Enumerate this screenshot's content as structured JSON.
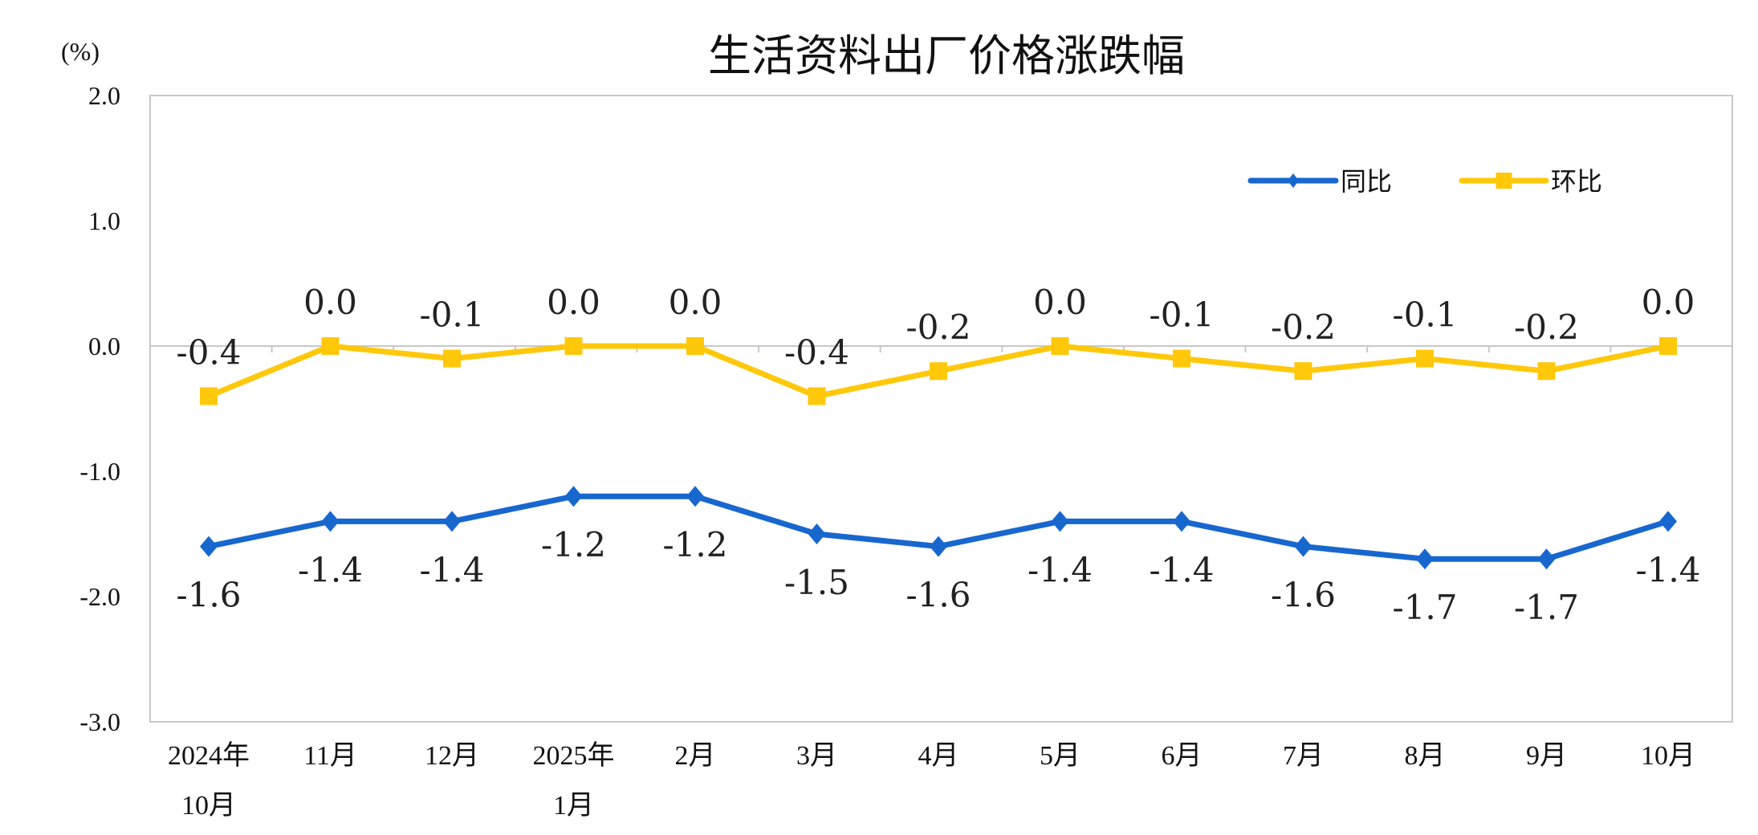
{
  "chart_data": {
    "type": "line",
    "title": "生活资料出厂价格涨跌幅",
    "ylabel": "(%)",
    "xlabel": "",
    "ylim": [
      -3.0,
      2.0
    ],
    "yticks": [
      "2.0",
      "1.0",
      "0.0",
      "-1.0",
      "-2.0",
      "-3.0"
    ],
    "ytick_values": [
      2.0,
      1.0,
      0.0,
      -1.0,
      -2.0,
      -3.0
    ],
    "categories": [
      [
        "2024年",
        "10月"
      ],
      [
        "11月"
      ],
      [
        "12月"
      ],
      [
        "2025年",
        "1月"
      ],
      [
        "2月"
      ],
      [
        "3月"
      ],
      [
        "4月"
      ],
      [
        "5月"
      ],
      [
        "6月"
      ],
      [
        "7月"
      ],
      [
        "8月"
      ],
      [
        "9月"
      ],
      [
        "10月"
      ]
    ],
    "series": [
      {
        "name": "同比",
        "color": "#1767CF",
        "marker": "diamond",
        "values": [
          -1.6,
          -1.4,
          -1.4,
          -1.2,
          -1.2,
          -1.5,
          -1.6,
          -1.4,
          -1.4,
          -1.6,
          -1.7,
          -1.7,
          -1.4
        ],
        "labels": [
          "-1.6",
          "-1.4",
          "-1.4",
          "-1.2",
          "-1.2",
          "-1.5",
          "-1.6",
          "-1.4",
          "-1.4",
          "-1.6",
          "-1.7",
          "-1.7",
          "-1.4"
        ]
      },
      {
        "name": "环比",
        "color": "#FFC80A",
        "marker": "square",
        "values": [
          -0.4,
          0.0,
          -0.1,
          0.0,
          0.0,
          -0.4,
          -0.2,
          0.0,
          -0.1,
          -0.2,
          -0.1,
          -0.2,
          0.0
        ],
        "labels": [
          "-0.4",
          "0.0",
          "-0.1",
          "0.0",
          "0.0",
          "-0.4",
          "-0.2",
          "0.0",
          "-0.1",
          "-0.2",
          "-0.1",
          "-0.2",
          "0.0"
        ]
      }
    ],
    "grid": false,
    "zero_line": true,
    "legend_position": "top-right"
  }
}
